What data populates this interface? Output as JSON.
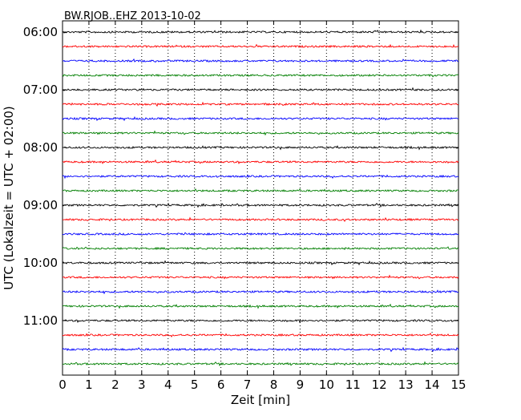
{
  "chart_data": {
    "type": "line",
    "title": "BW.RJOB..EHZ 2013-10-02",
    "xlabel": "Zeit  [min]",
    "ylabel": "UTC (Lokalzeit = UTC + 02:00)",
    "xlim": [
      0,
      15
    ],
    "x_ticks": [
      "0",
      "1",
      "2",
      "3",
      "4",
      "5",
      "6",
      "7",
      "8",
      "9",
      "10",
      "11",
      "12",
      "13",
      "14",
      "15"
    ],
    "y_tick_labels": [
      "06:00",
      "07:00",
      "08:00",
      "09:00",
      "10:00",
      "11:00"
    ],
    "traces_per_hour": 4,
    "trace_count": 24,
    "trace_colors": [
      "#000000",
      "#ff0000",
      "#0000ff",
      "#007f00"
    ],
    "grid": "vertical dotted at each minute"
  }
}
